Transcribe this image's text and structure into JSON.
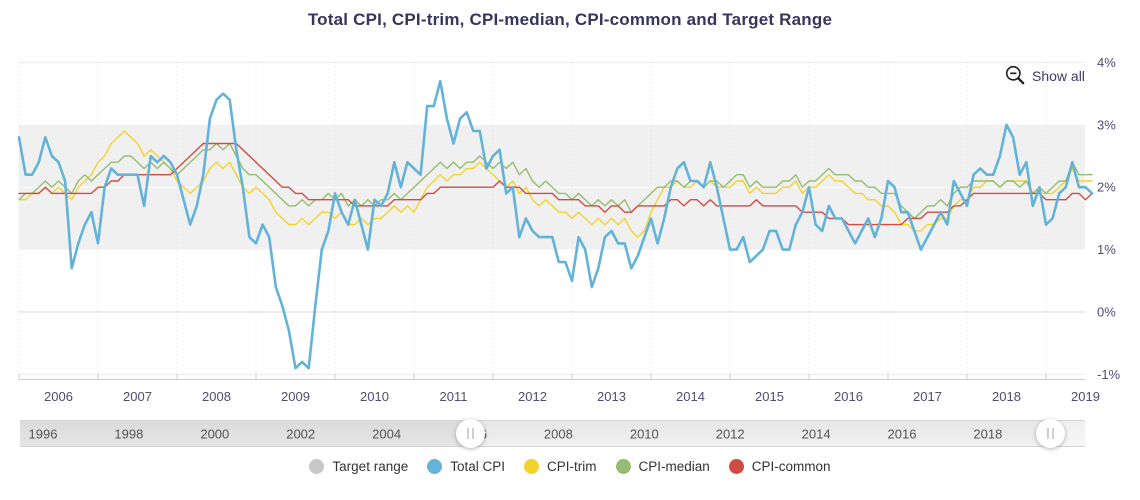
{
  "title": "Total CPI, CPI-trim, CPI-median, CPI-common and Target Range",
  "controls": {
    "show_all_label": "Show all",
    "zoom_icon": "magnifier-minus-zoom-out-icon"
  },
  "y_axis": {
    "labels": [
      "4%",
      "3%",
      "2%",
      "1%",
      "0%",
      "-1%"
    ],
    "values": [
      4,
      3,
      2,
      1,
      0,
      -1
    ]
  },
  "x_axis": {
    "years": [
      "2006",
      "2007",
      "2008",
      "2009",
      "2010",
      "2011",
      "2012",
      "2013",
      "2014",
      "2015",
      "2016",
      "2017",
      "2018",
      "2019"
    ]
  },
  "navigator": {
    "labels": [
      "1996",
      "1998",
      "2000",
      "2002",
      "2004",
      "2006",
      "2008",
      "2010",
      "2012",
      "2014",
      "2016",
      "2018"
    ],
    "handle_glyph": "||"
  },
  "legend": {
    "items": [
      {
        "label": "Target range",
        "color": "#c7c7c7"
      },
      {
        "label": "Total CPI",
        "color": "#63b3d8"
      },
      {
        "label": "CPI-trim",
        "color": "#f4d22c"
      },
      {
        "label": "CPI-median",
        "color": "#93bd70"
      },
      {
        "label": "CPI-common",
        "color": "#cf4b44"
      }
    ]
  },
  "chart_data": {
    "type": "line",
    "title": "Total CPI, CPI-trim, CPI-median, CPI-common and Target Range",
    "frequency": "monthly",
    "x_start": "2006-01",
    "x_end": "2019-08",
    "ylim": [
      -1,
      4
    ],
    "y_unit": "%",
    "grid": true,
    "legend_position": "bottom",
    "target_range": {
      "low": 1,
      "high": 3,
      "color": "#f0f0f0",
      "label": "Target range"
    },
    "series": [
      {
        "name": "Total CPI",
        "color": "#63b3d8",
        "values": [
          2.8,
          2.2,
          2.2,
          2.4,
          2.8,
          2.5,
          2.4,
          2.1,
          0.7,
          1.1,
          1.4,
          1.6,
          1.1,
          2.0,
          2.3,
          2.2,
          2.2,
          2.2,
          2.2,
          1.7,
          2.5,
          2.4,
          2.5,
          2.4,
          2.2,
          1.8,
          1.4,
          1.7,
          2.2,
          3.1,
          3.4,
          3.5,
          3.4,
          2.6,
          2.0,
          1.2,
          1.1,
          1.4,
          1.2,
          0.4,
          0.1,
          -0.3,
          -0.9,
          -0.8,
          -0.9,
          0.1,
          1.0,
          1.3,
          1.9,
          1.6,
          1.4,
          1.8,
          1.4,
          1.0,
          1.8,
          1.7,
          1.9,
          2.4,
          2.0,
          2.4,
          2.3,
          2.2,
          3.3,
          3.3,
          3.7,
          3.1,
          2.7,
          3.1,
          3.2,
          2.9,
          2.9,
          2.3,
          2.5,
          2.6,
          1.9,
          2.0,
          1.2,
          1.5,
          1.3,
          1.2,
          1.2,
          1.2,
          0.8,
          0.8,
          0.5,
          1.2,
          1.0,
          0.4,
          0.7,
          1.2,
          1.3,
          1.1,
          1.1,
          0.7,
          0.9,
          1.2,
          1.5,
          1.1,
          1.5,
          2.0,
          2.3,
          2.4,
          2.1,
          2.1,
          2.0,
          2.4,
          2.0,
          1.5,
          1.0,
          1.0,
          1.2,
          0.8,
          0.9,
          1.0,
          1.3,
          1.3,
          1.0,
          1.0,
          1.4,
          1.6,
          2.0,
          1.4,
          1.3,
          1.7,
          1.5,
          1.5,
          1.3,
          1.1,
          1.3,
          1.5,
          1.2,
          1.5,
          2.1,
          2.0,
          1.6,
          1.6,
          1.3,
          1.0,
          1.2,
          1.4,
          1.6,
          1.4,
          2.1,
          1.9,
          1.7,
          2.2,
          2.3,
          2.2,
          2.2,
          2.5,
          3.0,
          2.8,
          2.2,
          2.4,
          1.7,
          2.0,
          1.4,
          1.5,
          1.9,
          2.0,
          2.4,
          2.0,
          2.0,
          1.9
        ]
      },
      {
        "name": "CPI-trim",
        "color": "#f4d22c",
        "values": [
          1.8,
          1.8,
          1.9,
          1.9,
          2.0,
          1.9,
          2.0,
          1.9,
          1.8,
          2.0,
          2.1,
          2.2,
          2.4,
          2.5,
          2.7,
          2.8,
          2.9,
          2.8,
          2.7,
          2.5,
          2.6,
          2.5,
          2.4,
          2.3,
          2.1,
          2.0,
          1.9,
          2.0,
          2.1,
          2.3,
          2.4,
          2.3,
          2.4,
          2.2,
          2.0,
          1.9,
          2.0,
          1.9,
          1.8,
          1.6,
          1.5,
          1.4,
          1.4,
          1.5,
          1.4,
          1.5,
          1.6,
          1.6,
          1.5,
          1.6,
          1.4,
          1.4,
          1.5,
          1.4,
          1.5,
          1.5,
          1.6,
          1.7,
          1.6,
          1.7,
          1.6,
          1.8,
          2.0,
          2.1,
          2.2,
          2.1,
          2.2,
          2.2,
          2.3,
          2.3,
          2.4,
          2.3,
          2.2,
          2.1,
          2.0,
          2.1,
          1.9,
          2.0,
          1.8,
          1.7,
          1.8,
          1.7,
          1.6,
          1.6,
          1.5,
          1.6,
          1.5,
          1.4,
          1.5,
          1.4,
          1.5,
          1.4,
          1.5,
          1.3,
          1.2,
          1.3,
          1.6,
          1.8,
          2.0,
          2.0,
          2.1,
          2.0,
          2.0,
          2.1,
          2.0,
          2.1,
          2.0,
          2.0,
          2.0,
          2.1,
          2.1,
          1.9,
          2.0,
          1.9,
          1.9,
          1.9,
          2.0,
          2.0,
          2.1,
          1.9,
          2.0,
          2.0,
          2.1,
          2.2,
          2.1,
          2.1,
          2.0,
          1.9,
          1.9,
          1.8,
          1.8,
          1.7,
          1.7,
          1.6,
          1.4,
          1.4,
          1.3,
          1.3,
          1.4,
          1.4,
          1.5,
          1.5,
          1.7,
          1.8,
          1.8,
          2.0,
          2.0,
          2.1,
          2.1,
          2.0,
          2.1,
          2.1,
          2.1,
          2.1,
          1.9,
          1.9,
          1.9,
          1.9,
          2.0,
          2.1,
          2.3,
          2.1,
          2.1,
          2.1
        ]
      },
      {
        "name": "CPI-median",
        "color": "#93bd70",
        "values": [
          1.8,
          1.9,
          1.9,
          2.0,
          2.1,
          2.0,
          2.1,
          2.0,
          1.9,
          2.1,
          2.2,
          2.1,
          2.2,
          2.3,
          2.4,
          2.4,
          2.5,
          2.5,
          2.4,
          2.3,
          2.4,
          2.3,
          2.4,
          2.3,
          2.2,
          2.3,
          2.4,
          2.5,
          2.6,
          2.6,
          2.7,
          2.6,
          2.7,
          2.5,
          2.3,
          2.2,
          2.2,
          2.1,
          2.0,
          1.9,
          1.8,
          1.7,
          1.7,
          1.8,
          1.7,
          1.8,
          1.8,
          1.9,
          1.8,
          1.9,
          1.7,
          1.8,
          1.7,
          1.8,
          1.7,
          1.8,
          1.8,
          1.9,
          1.8,
          1.9,
          2.0,
          2.1,
          2.2,
          2.3,
          2.4,
          2.3,
          2.4,
          2.3,
          2.4,
          2.4,
          2.5,
          2.4,
          2.3,
          2.4,
          2.3,
          2.4,
          2.2,
          2.3,
          2.1,
          2.0,
          2.1,
          2.0,
          1.9,
          1.9,
          1.8,
          1.9,
          1.8,
          1.7,
          1.8,
          1.7,
          1.8,
          1.7,
          1.8,
          1.6,
          1.7,
          1.8,
          1.9,
          2.0,
          2.0,
          2.1,
          2.1,
          2.0,
          2.1,
          2.1,
          2.0,
          2.1,
          2.1,
          2.0,
          2.1,
          2.2,
          2.2,
          2.0,
          2.1,
          2.0,
          2.0,
          2.0,
          2.1,
          2.1,
          2.2,
          2.0,
          2.1,
          2.1,
          2.2,
          2.3,
          2.2,
          2.2,
          2.2,
          2.1,
          2.1,
          2.0,
          2.0,
          1.9,
          1.9,
          1.9,
          1.7,
          1.6,
          1.5,
          1.6,
          1.7,
          1.7,
          1.8,
          1.7,
          1.9,
          2.0,
          2.0,
          2.1,
          2.1,
          2.1,
          2.1,
          2.0,
          2.1,
          2.1,
          2.0,
          2.1,
          1.9,
          2.0,
          1.9,
          2.0,
          2.1,
          2.1,
          2.4,
          2.2,
          2.2,
          2.2
        ]
      },
      {
        "name": "CPI-common",
        "color": "#cf4b44",
        "values": [
          1.9,
          1.9,
          1.9,
          1.9,
          2.0,
          1.9,
          1.9,
          1.9,
          1.9,
          1.9,
          1.9,
          1.9,
          2.0,
          2.0,
          2.1,
          2.1,
          2.2,
          2.2,
          2.2,
          2.2,
          2.2,
          2.2,
          2.2,
          2.2,
          2.3,
          2.4,
          2.5,
          2.6,
          2.7,
          2.7,
          2.7,
          2.7,
          2.7,
          2.7,
          2.6,
          2.5,
          2.4,
          2.3,
          2.2,
          2.1,
          2.0,
          2.0,
          1.9,
          1.9,
          1.8,
          1.8,
          1.8,
          1.8,
          1.8,
          1.8,
          1.8,
          1.7,
          1.7,
          1.7,
          1.7,
          1.7,
          1.7,
          1.8,
          1.8,
          1.8,
          1.8,
          1.8,
          1.9,
          1.9,
          2.0,
          2.0,
          2.0,
          2.0,
          2.0,
          2.0,
          2.0,
          2.0,
          2.0,
          2.1,
          2.0,
          2.0,
          2.0,
          1.9,
          1.9,
          1.9,
          1.9,
          1.9,
          1.8,
          1.8,
          1.8,
          1.8,
          1.7,
          1.7,
          1.7,
          1.6,
          1.7,
          1.7,
          1.6,
          1.6,
          1.7,
          1.7,
          1.7,
          1.7,
          1.7,
          1.8,
          1.8,
          1.7,
          1.8,
          1.8,
          1.7,
          1.8,
          1.7,
          1.7,
          1.7,
          1.7,
          1.7,
          1.7,
          1.8,
          1.7,
          1.7,
          1.7,
          1.7,
          1.7,
          1.7,
          1.6,
          1.6,
          1.6,
          1.6,
          1.5,
          1.5,
          1.5,
          1.4,
          1.4,
          1.4,
          1.4,
          1.4,
          1.4,
          1.4,
          1.4,
          1.4,
          1.5,
          1.5,
          1.5,
          1.6,
          1.6,
          1.6,
          1.6,
          1.7,
          1.7,
          1.8,
          1.9,
          1.9,
          1.9,
          1.9,
          1.9,
          1.9,
          1.9,
          1.9,
          1.9,
          1.9,
          1.9,
          1.8,
          1.8,
          1.8,
          1.8,
          1.9,
          1.9,
          1.8,
          1.9
        ]
      }
    ]
  }
}
